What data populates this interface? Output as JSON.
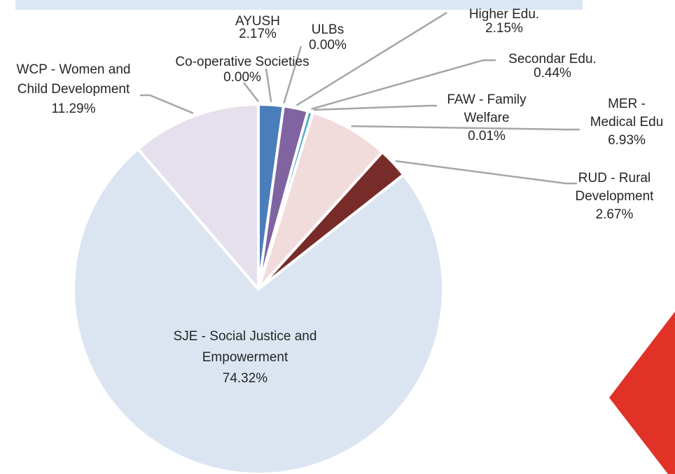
{
  "chart_data": {
    "type": "pie",
    "start_angle_deg": 0,
    "direction": "clockwise",
    "slices": [
      {
        "label_lines": [
          "AYUSH"
        ],
        "value_label": "2.17%",
        "value": 2.17,
        "color": "#4a7ebb"
      },
      {
        "label_lines": [
          "ULBs"
        ],
        "value_label": "0.00%",
        "value": 0.0,
        "color": "#8064a2"
      },
      {
        "label_lines": [
          "Higher Edu."
        ],
        "value_label": "2.15%",
        "value": 2.15,
        "color": "#8064a2"
      },
      {
        "label_lines": [
          "Secondar Edu."
        ],
        "value_label": "0.44%",
        "value": 0.44,
        "color": "#4bacc6"
      },
      {
        "label_lines": [
          "FAW  - Family",
          "Welfare"
        ],
        "value_label": "0.01%",
        "value": 0.01,
        "color": "#c0504d"
      },
      {
        "label_lines": [
          "MER -",
          "Medical Edu"
        ],
        "value_label": "6.93%",
        "value": 6.93,
        "color": "#f2dcdb"
      },
      {
        "label_lines": [
          "RUD - Rural",
          "Development"
        ],
        "value_label": "2.67%",
        "value": 2.67,
        "color": "#772c2a"
      },
      {
        "label_lines": [
          "SJE - Social Justice and",
          "Empowerment"
        ],
        "value_label": "74.32%",
        "value": 74.32,
        "color": "#dbe5f1"
      },
      {
        "label_lines": [
          "WCP - Women and",
          "Child Development"
        ],
        "value_label": "11.29%",
        "value": 11.29,
        "color": "#e5e0ec"
      },
      {
        "label_lines": [
          "Co-operative Societies"
        ],
        "value_label": "0.00%",
        "value": 0.0,
        "color": "#4a7ebb"
      }
    ]
  },
  "decor": {
    "band_color": "#dbe7f5",
    "accent_color": "#e03226"
  }
}
